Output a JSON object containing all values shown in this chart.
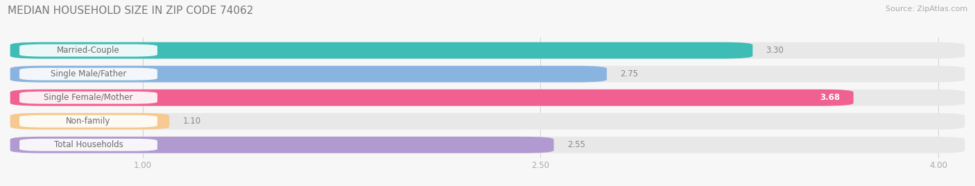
{
  "title": "MEDIAN HOUSEHOLD SIZE IN ZIP CODE 74062",
  "source": "Source: ZipAtlas.com",
  "categories": [
    "Married-Couple",
    "Single Male/Father",
    "Single Female/Mother",
    "Non-family",
    "Total Households"
  ],
  "values": [
    3.3,
    2.75,
    3.68,
    1.1,
    2.55
  ],
  "bar_colors": [
    "#3dbdb5",
    "#8ab4e0",
    "#f06090",
    "#f5c990",
    "#b09ad0"
  ],
  "label_text_color": "#6a6a6a",
  "value_label_color_inside": "#ffffff",
  "value_label_color_outside": "#888888",
  "background_color": "#f7f7f7",
  "bar_bg_color": "#e8e8e8",
  "xmin": 0.5,
  "xmax": 4.1,
  "xticks": [
    1.0,
    2.5,
    4.0
  ],
  "xtick_labels": [
    "1.00",
    "2.50",
    "4.00"
  ],
  "title_fontsize": 11,
  "label_fontsize": 8.5,
  "value_fontsize": 8.5,
  "source_fontsize": 8
}
